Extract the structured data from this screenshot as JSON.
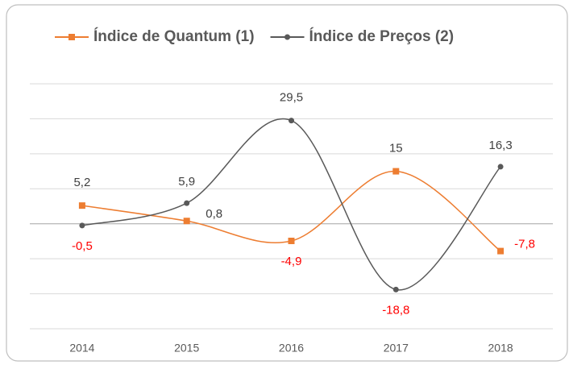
{
  "chart_data": {
    "type": "line",
    "categories": [
      "2014",
      "2015",
      "2016",
      "2017",
      "2018"
    ],
    "series": [
      {
        "name": "Índice de Quantum (1)",
        "color": "#ed7d31",
        "marker": "square",
        "values": [
          5.2,
          0.8,
          -4.9,
          15,
          -7.8
        ],
        "value_labels": [
          "5,2",
          "0,8",
          "-4,9",
          "15",
          "-7,8"
        ]
      },
      {
        "name": "Índice de Preços (2)",
        "color": "#595959",
        "marker": "circle",
        "values": [
          -0.5,
          5.9,
          29.5,
          -18.8,
          16.3
        ],
        "value_labels": [
          "-0,5",
          "5,9",
          "29,5",
          "-18,8",
          "16,3"
        ]
      }
    ],
    "ylim": [
      -30,
      40
    ],
    "yticks": [
      -30,
      -20,
      -10,
      0,
      10,
      20,
      30,
      40
    ],
    "grid": true,
    "smooth": true,
    "legend": "top"
  }
}
